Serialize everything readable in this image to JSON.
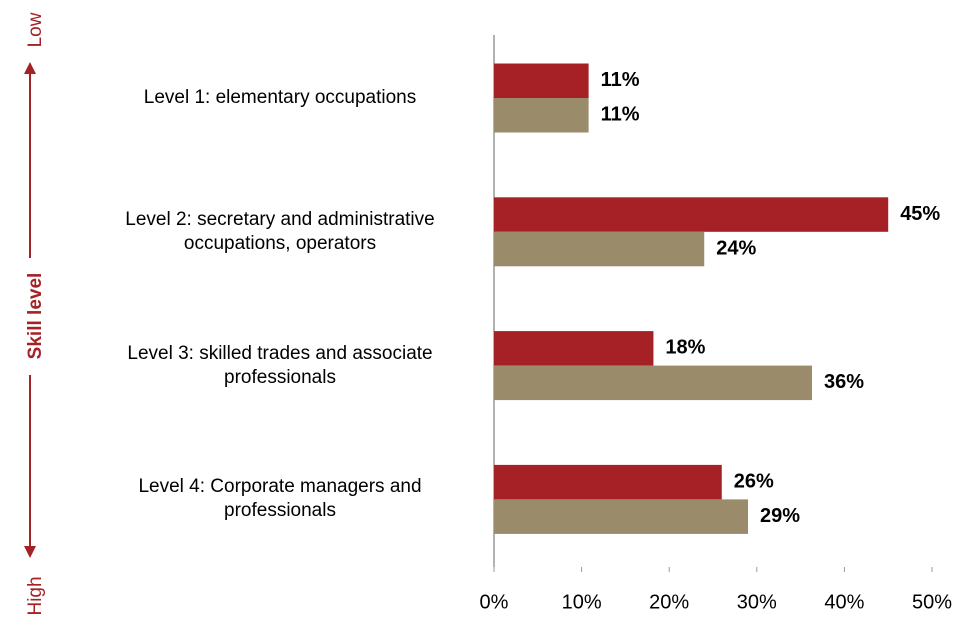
{
  "chart_data": {
    "type": "barh",
    "y_axis_label": "Skill level",
    "annotations": [
      "Low",
      "High"
    ],
    "categories": [
      "Level 1: elementary occupations",
      "Level 2: secretary and administrative occupations, operators",
      "Level 3: skilled trades and associate professionals",
      "Level 4: Corporate managers and professionals"
    ],
    "series": [
      {
        "color": "#a52125",
        "values": [
          10.8,
          45.0,
          18.2,
          26.0
        ],
        "value_labels": [
          "11%",
          "45%",
          "18%",
          "26%"
        ]
      },
      {
        "color": "#9a8b6b",
        "values": [
          10.8,
          24.0,
          36.3,
          29.0
        ],
        "value_labels": [
          "11%",
          "24%",
          "36%",
          "29%"
        ]
      }
    ],
    "xlim": [
      0,
      50
    ],
    "xticks": [
      {
        "value": 0,
        "label": "0%"
      },
      {
        "value": 10,
        "label": "10%"
      },
      {
        "value": 20,
        "label": "20%"
      },
      {
        "value": 30,
        "label": "30%"
      },
      {
        "value": 40,
        "label": "40%"
      },
      {
        "value": 50,
        "label": "50%"
      }
    ]
  }
}
